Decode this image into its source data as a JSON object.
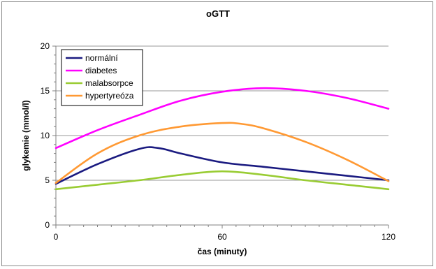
{
  "chart_data": {
    "type": "line",
    "title": "oGTT",
    "xlabel": "čas (minuty)",
    "ylabel": "glykemie (mmol/l)",
    "xlim": [
      0,
      120
    ],
    "ylim": [
      0,
      20
    ],
    "x_ticks": [
      0,
      60,
      120
    ],
    "y_ticks": [
      0,
      5,
      10,
      15,
      20
    ],
    "grid": "horizontal",
    "legend": "top-left",
    "series": [
      {
        "name": "normální",
        "color": "#1a1a80",
        "x": [
          0,
          15,
          30,
          37,
          45,
          60,
          75,
          90,
          105,
          120
        ],
        "y": [
          4.6,
          6.8,
          8.5,
          8.6,
          8.0,
          7.0,
          6.5,
          6.0,
          5.5,
          5.0
        ]
      },
      {
        "name": "diabetes",
        "color": "#ff00ff",
        "x": [
          0,
          15,
          30,
          45,
          60,
          75,
          90,
          105,
          120
        ],
        "y": [
          8.6,
          10.6,
          12.3,
          13.9,
          14.9,
          15.3,
          15.0,
          14.2,
          13.0
        ]
      },
      {
        "name": "malabsorpce",
        "color": "#99cc33",
        "x": [
          0,
          15,
          30,
          45,
          60,
          75,
          90,
          105,
          120
        ],
        "y": [
          4.0,
          4.5,
          5.0,
          5.6,
          6.0,
          5.6,
          5.0,
          4.5,
          4.0
        ]
      },
      {
        "name": "hypertyreóza",
        "color": "#ff9933",
        "x": [
          0,
          15,
          30,
          45,
          60,
          67,
          75,
          90,
          105,
          120
        ],
        "y": [
          4.7,
          8.0,
          10.0,
          11.0,
          11.4,
          11.3,
          10.8,
          9.3,
          7.3,
          4.9
        ]
      }
    ]
  }
}
